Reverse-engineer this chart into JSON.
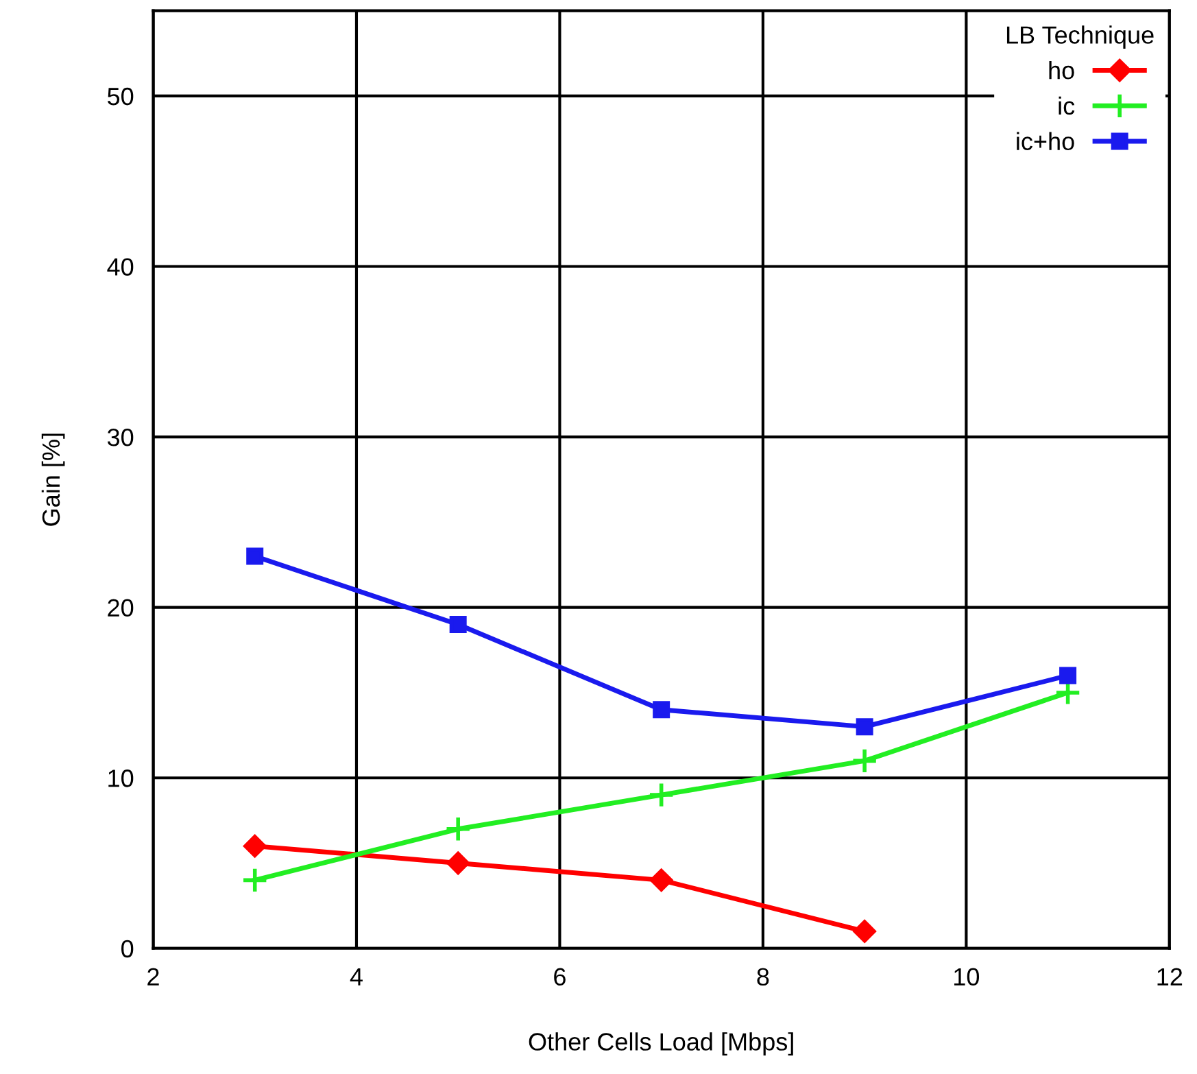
{
  "chart_data": {
    "type": "line",
    "xlabel": "Other Cells Load [Mbps]",
    "ylabel": "Gain [%]",
    "legend_title": "LB Technique",
    "x": [
      3,
      5,
      7,
      9,
      11
    ],
    "series": [
      {
        "name": "ho",
        "color": "#ff0000",
        "marker": "diamond",
        "values": [
          6,
          5,
          4,
          1,
          null
        ]
      },
      {
        "name": "ic",
        "color": "#22ee22",
        "marker": "cross",
        "values": [
          4,
          7,
          9,
          11,
          15
        ]
      },
      {
        "name": "ic+ho",
        "color": "#1a1aee",
        "marker": "square",
        "values": [
          23,
          19,
          14,
          13,
          16
        ]
      }
    ],
    "xlim": [
      2,
      12
    ],
    "xticks": [
      2,
      4,
      6,
      8,
      10,
      12
    ],
    "ylim": [
      0,
      55
    ],
    "yticks": [
      0,
      10,
      20,
      30,
      40,
      50
    ],
    "grid": true,
    "legend": "top right",
    "line_style": "solid"
  }
}
